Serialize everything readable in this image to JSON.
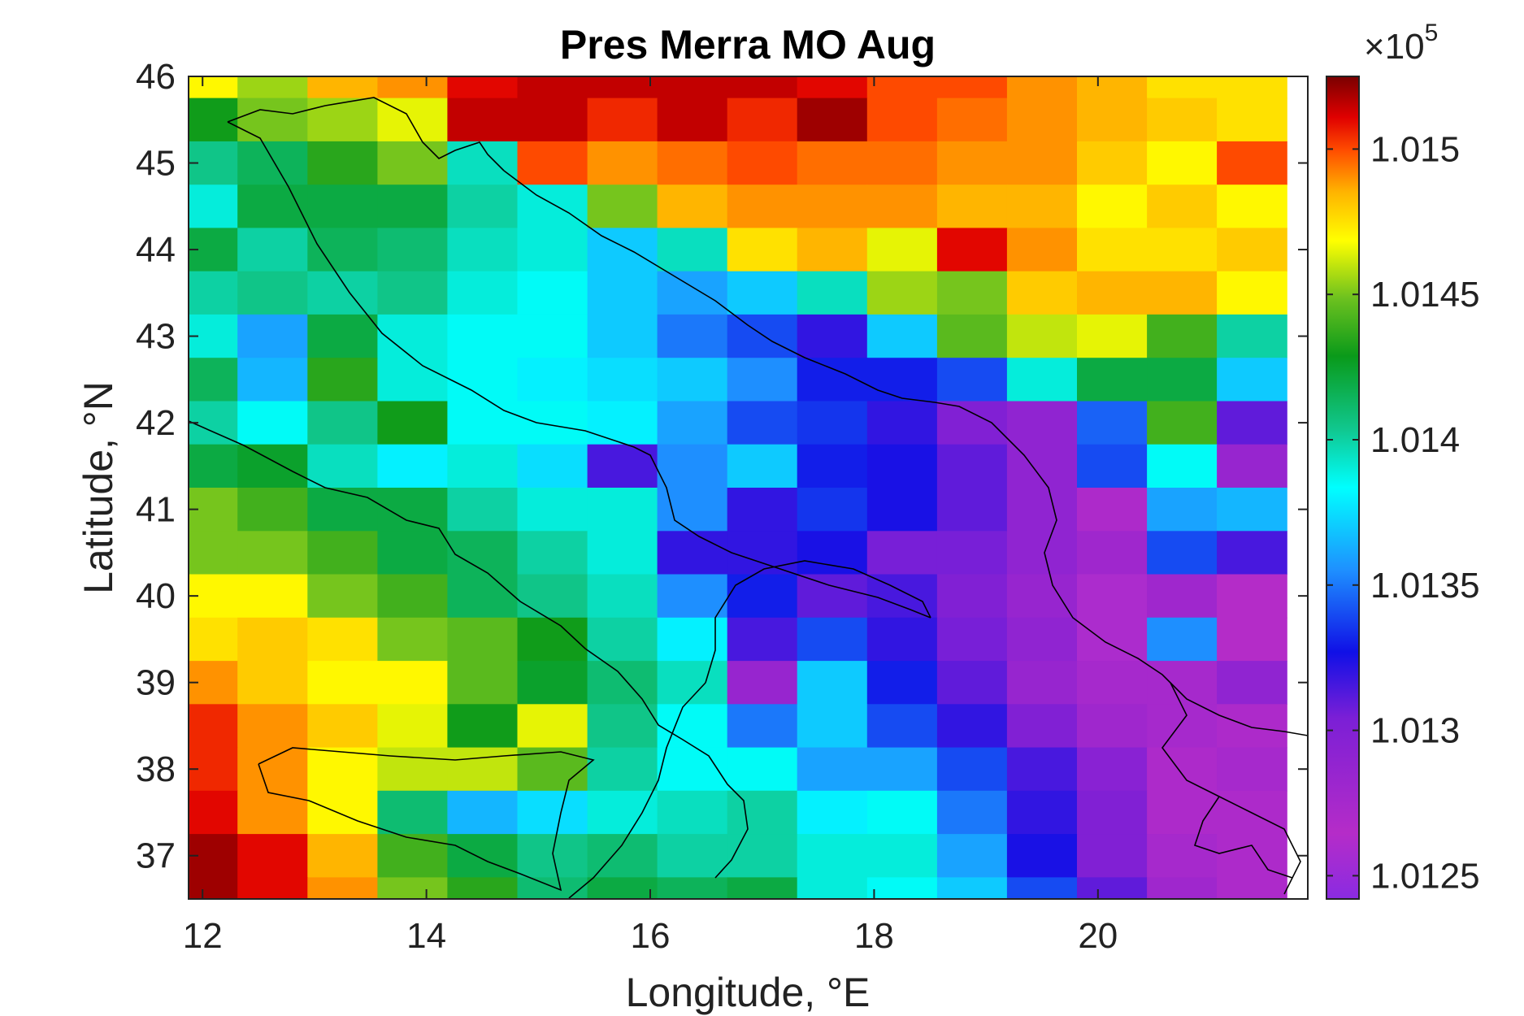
{
  "chart_data": {
    "type": "heatmap",
    "title": "Pres Merra MO Aug",
    "xlabel": "Longitude, °E",
    "ylabel": "Latitude, °N",
    "xlim": [
      11.875,
      21.875
    ],
    "ylim": [
      36.5,
      46.0
    ],
    "x_ticks": [
      12,
      14,
      16,
      18,
      20
    ],
    "y_ticks": [
      37,
      38,
      39,
      40,
      41,
      42,
      43,
      44,
      45,
      46
    ],
    "x_tick_labels": [
      "12",
      "14",
      "16",
      "18",
      "20"
    ],
    "y_tick_labels": [
      "37",
      "38",
      "39",
      "40",
      "41",
      "42",
      "43",
      "44",
      "45",
      "46"
    ],
    "colorbar": {
      "colormap": "rainbow (purple-blue-cyan-green-yellow-red-darkred)",
      "exponent_label": "×10",
      "exponent_power": "5",
      "min": 101242,
      "max": 101525,
      "ticks": [
        101250,
        101300,
        101350,
        101400,
        101450,
        101500
      ],
      "tick_labels": [
        "1.0125",
        "1.013",
        "1.0135",
        "1.014",
        "1.0145",
        "1.015"
      ]
    },
    "grid": false,
    "cell_width_deg": 0.625,
    "cell_height_deg": 0.5,
    "x_centers": [
      12.0,
      12.625,
      13.25,
      13.875,
      14.5,
      15.125,
      15.75,
      16.375,
      17.0,
      17.625,
      18.25,
      18.875,
      19.5,
      20.125,
      20.75,
      21.375
    ],
    "y_centers": [
      46.0,
      45.5,
      45.0,
      44.5,
      44.0,
      43.5,
      43.0,
      42.5,
      42.0,
      41.5,
      41.0,
      40.5,
      40.0,
      39.5,
      39.0,
      38.5,
      38.0,
      37.5,
      37.0,
      36.5
    ],
    "values": [
      [
        101470,
        101455,
        101485,
        101490,
        101510,
        101515,
        101515,
        101515,
        101515,
        101510,
        101500,
        101500,
        101490,
        101485,
        101475,
        101475
      ],
      [
        101430,
        101450,
        101455,
        101465,
        101515,
        101515,
        101505,
        101515,
        101505,
        101520,
        101500,
        101495,
        101490,
        101485,
        101480,
        101475
      ],
      [
        101405,
        101415,
        101435,
        101450,
        101395,
        101500,
        101490,
        101495,
        101500,
        101495,
        101495,
        101490,
        101490,
        101480,
        101470,
        101500
      ],
      [
        101390,
        101420,
        101420,
        101420,
        101400,
        101390,
        101450,
        101485,
        101490,
        101490,
        101490,
        101485,
        101485,
        101470,
        101480,
        101470
      ],
      [
        101420,
        101400,
        101415,
        101410,
        101395,
        101390,
        101370,
        101395,
        101475,
        101485,
        101465,
        101510,
        101490,
        101475,
        101475,
        101480
      ],
      [
        101400,
        101405,
        101400,
        101405,
        101390,
        101385,
        101370,
        101360,
        101370,
        101395,
        101455,
        101450,
        101480,
        101485,
        101485,
        101470
      ],
      [
        101390,
        101360,
        101420,
        101390,
        101385,
        101385,
        101370,
        101350,
        101340,
        101320,
        101370,
        101445,
        101460,
        101465,
        101440,
        101400
      ],
      [
        101415,
        101365,
        101435,
        101390,
        101385,
        101380,
        101375,
        101370,
        101355,
        101330,
        101330,
        101340,
        101390,
        101420,
        101420,
        101370
      ],
      [
        101400,
        101385,
        101405,
        101430,
        101385,
        101385,
        101380,
        101360,
        101340,
        101335,
        101320,
        101300,
        101290,
        101345,
        101440,
        101310
      ],
      [
        101420,
        101425,
        101395,
        101380,
        101390,
        101375,
        101315,
        101355,
        101370,
        101330,
        101325,
        101310,
        101290,
        101340,
        101385,
        101285
      ],
      [
        101450,
        101440,
        101420,
        101420,
        101400,
        101390,
        101390,
        101355,
        101320,
        101335,
        101325,
        101310,
        101290,
        101270,
        101360,
        101365
      ],
      [
        101450,
        101450,
        101440,
        101420,
        101415,
        101400,
        101390,
        101320,
        101320,
        101325,
        101305,
        101305,
        101290,
        101280,
        101340,
        101315
      ],
      [
        101470,
        101470,
        101450,
        101440,
        101415,
        101405,
        101395,
        101355,
        101330,
        101310,
        101315,
        101300,
        101285,
        101260,
        101280,
        101265
      ],
      [
        101475,
        101480,
        101475,
        101450,
        101445,
        101430,
        101400,
        101380,
        101315,
        101340,
        101320,
        101305,
        101290,
        101260,
        101355,
        101265
      ],
      [
        101490,
        101480,
        101470,
        101470,
        101445,
        101425,
        101410,
        101395,
        101285,
        101370,
        101330,
        101310,
        101285,
        101275,
        101275,
        101290
      ],
      [
        101505,
        101490,
        101480,
        101465,
        101430,
        101465,
        101405,
        101385,
        101350,
        101370,
        101340,
        101320,
        101300,
        101280,
        101275,
        101270
      ],
      [
        101505,
        101490,
        101470,
        101460,
        101460,
        101445,
        101400,
        101385,
        101385,
        101360,
        101360,
        101340,
        101315,
        101295,
        101270,
        101275
      ],
      [
        101510,
        101490,
        101470,
        101410,
        101365,
        101375,
        101390,
        101395,
        101400,
        101380,
        101385,
        101350,
        101320,
        101300,
        101270,
        101270
      ],
      [
        101520,
        101510,
        101485,
        101440,
        101420,
        101405,
        101410,
        101400,
        101400,
        101390,
        101390,
        101360,
        101325,
        101300,
        101275,
        101270
      ],
      [
        101520,
        101510,
        101490,
        101450,
        101435,
        101410,
        101420,
        101415,
        101420,
        101390,
        101385,
        101370,
        101340,
        101310,
        101280,
        101270
      ]
    ]
  }
}
